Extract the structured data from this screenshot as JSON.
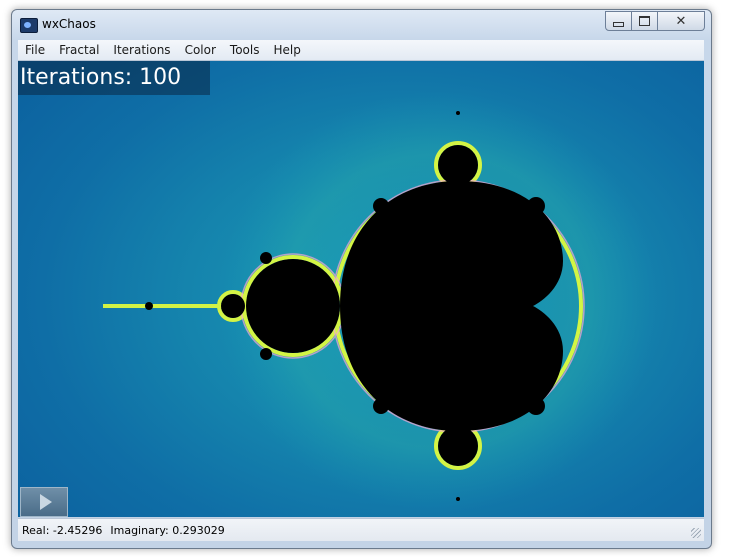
{
  "window": {
    "title": "wxChaos",
    "controls": {
      "minimize": "minimize",
      "maximize": "maximize",
      "close": "✕"
    }
  },
  "menu": [
    "File",
    "Fractal",
    "Iterations",
    "Color",
    "Tools",
    "Help"
  ],
  "overlay": {
    "iterations": "Iterations: 100"
  },
  "status": {
    "real": "Real: -2.45296",
    "imaginary": "Imaginary: 0.293029"
  },
  "colors": {
    "background": "#1584ad",
    "set": "#000000",
    "edge": "#e8ff3a"
  },
  "icons": [
    "app-icon",
    "minimize-icon",
    "maximize-icon",
    "close-icon",
    "play-icon"
  ]
}
